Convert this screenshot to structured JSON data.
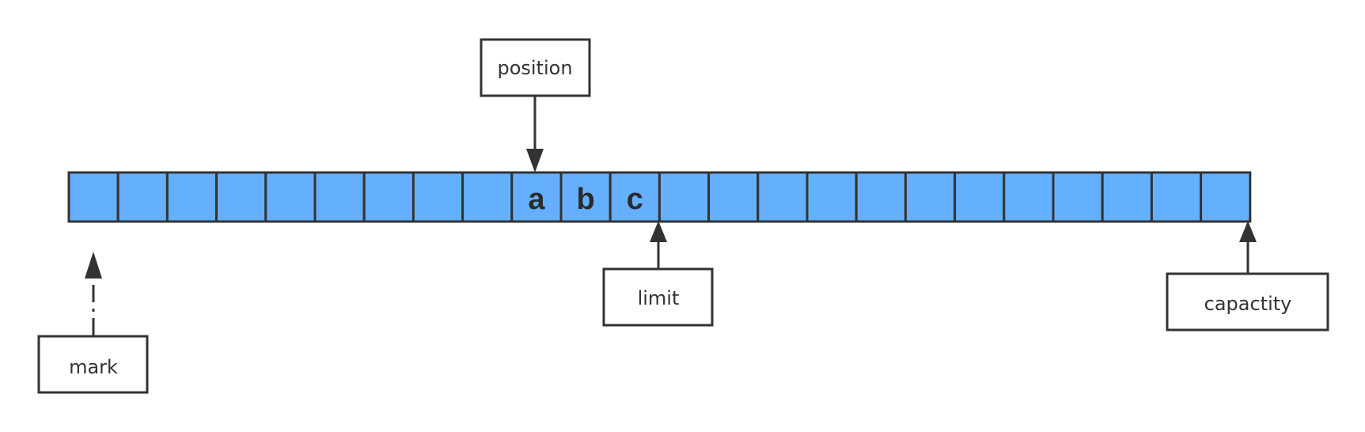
{
  "colors": {
    "cell_fill": "#64b0ff",
    "stroke": "#333333",
    "text": "#333333"
  },
  "buffer": {
    "cell_count": 24,
    "cells": [
      "",
      "",
      "",
      "",
      "",
      "",
      "",
      "",
      "",
      "a",
      "b",
      "c",
      "",
      "",
      "",
      "",
      "",
      "",
      "",
      "",
      "",
      "",
      "",
      ""
    ]
  },
  "pointers": {
    "position": {
      "label": "position",
      "index": 9,
      "side": "top",
      "style": "solid"
    },
    "limit": {
      "label": "limit",
      "index": 12,
      "side": "bottom",
      "style": "solid"
    },
    "capacity": {
      "label": "capactity",
      "index": 24,
      "side": "bottom",
      "style": "solid"
    },
    "mark": {
      "label": "mark",
      "index": 0,
      "side": "bottom",
      "style": "dashed"
    }
  }
}
